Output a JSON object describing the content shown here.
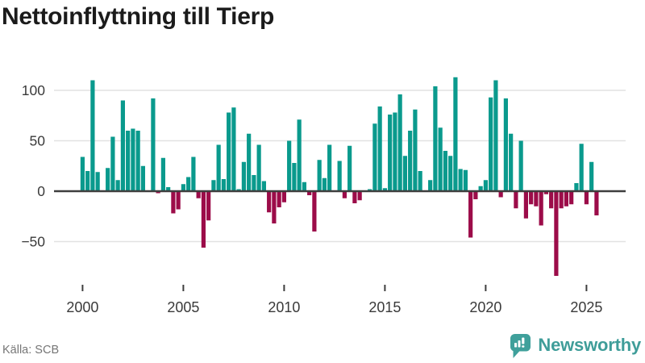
{
  "title": "Nettoinflyttning till Tierp",
  "source": "Källa: SCB",
  "brand": {
    "name": "Newsworthy"
  },
  "colors": {
    "positive": "#0a9a8d",
    "negative": "#9c0c49",
    "grid": "#e2e2e2",
    "axis": "#3e3e3e",
    "label": "#3a3a3a",
    "title_text": "#1b1b1b",
    "source_text": "#767676",
    "brand_teal": "#3f9d99"
  },
  "chart_data": {
    "type": "bar",
    "title": "Nettoinflyttning till Tierp",
    "frequency": "quarterly",
    "start": "2000Q1",
    "end": "2025Q3",
    "grid": true,
    "legend": false,
    "ylim": [
      -90,
      120
    ],
    "y_ticks": [
      100,
      50,
      0,
      -50
    ],
    "y_tick_labels": [
      "100",
      "50",
      "0",
      "−50"
    ],
    "x_tick_labels": [
      "2000",
      "2005",
      "2010",
      "2015",
      "2020",
      "2025"
    ],
    "values": [
      34,
      20,
      110,
      19,
      0,
      23,
      54,
      11,
      90,
      60,
      62,
      60,
      25,
      0,
      92,
      -2,
      33,
      4,
      -22,
      -18,
      7,
      14,
      34,
      -7,
      -56,
      -29,
      11,
      46,
      12,
      78,
      83,
      2,
      29,
      57,
      16,
      46,
      10,
      -21,
      -32,
      -16,
      -11,
      50,
      28,
      71,
      9,
      -4,
      -40,
      31,
      13,
      46,
      0,
      30,
      -7,
      45,
      -12,
      -9,
      0,
      2,
      67,
      84,
      3,
      76,
      78,
      96,
      35,
      60,
      81,
      20,
      0,
      11,
      104,
      63,
      40,
      35,
      113,
      22,
      21,
      -46,
      -8,
      5,
      11,
      93,
      110,
      -6,
      92,
      57,
      -17,
      50,
      -27,
      -13,
      -15,
      -34,
      -3,
      -17,
      -84,
      -17,
      -15,
      -13,
      8,
      47,
      -13,
      29,
      -24
    ]
  }
}
